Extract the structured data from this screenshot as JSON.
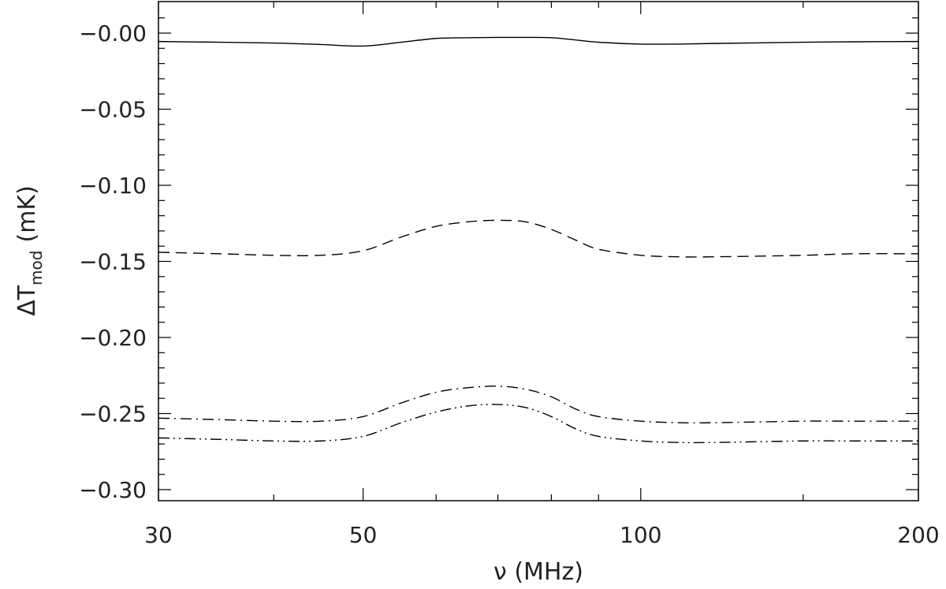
{
  "chart_data": {
    "type": "line",
    "title": "",
    "xlabel": "ν (MHz)",
    "ylabel": "ΔT_mod (mK)",
    "ylabel_main": "ΔT",
    "ylabel_sub": "mod",
    "ylabel_unit": "(mK)",
    "xscale": "log",
    "xlim": [
      30,
      200
    ],
    "ylim": [
      -0.3,
      0.0
    ],
    "x_ticks": [
      30,
      50,
      100,
      200
    ],
    "x_tick_labels": [
      "30",
      "50",
      "100",
      "200"
    ],
    "x_minor_ticks": [
      40,
      60,
      70,
      80,
      90,
      150
    ],
    "y_ticks": [
      0.0,
      -0.05,
      -0.1,
      -0.15,
      -0.2,
      -0.25,
      -0.3
    ],
    "y_tick_labels": [
      "−0.00",
      "−0.05",
      "−0.10",
      "−0.15",
      "−0.20",
      "−0.25",
      "−0.30"
    ],
    "grid": false,
    "series": [
      {
        "linestyle": "solid",
        "x": [
          30,
          35,
          40,
          45,
          50,
          55,
          60,
          65,
          70,
          75,
          80,
          85,
          90,
          100,
          110,
          120,
          150,
          170,
          200
        ],
        "y": [
          -0.0055,
          -0.006,
          -0.0065,
          -0.0075,
          -0.0085,
          -0.006,
          -0.0035,
          -0.003,
          -0.0028,
          -0.0028,
          -0.003,
          -0.0045,
          -0.006,
          -0.0072,
          -0.0072,
          -0.0068,
          -0.006,
          -0.0057,
          -0.0055
        ]
      },
      {
        "linestyle": "dashed",
        "x": [
          30,
          35,
          40,
          45,
          50,
          55,
          60,
          65,
          70,
          75,
          80,
          85,
          90,
          100,
          110,
          120,
          150,
          170,
          200
        ],
        "y": [
          -0.144,
          -0.145,
          -0.146,
          -0.146,
          -0.143,
          -0.134,
          -0.127,
          -0.124,
          -0.123,
          -0.124,
          -0.129,
          -0.136,
          -0.142,
          -0.146,
          -0.147,
          -0.147,
          -0.146,
          -0.145,
          -0.145
        ]
      },
      {
        "linestyle": "dash-dot",
        "x": [
          30,
          35,
          40,
          45,
          50,
          55,
          60,
          65,
          70,
          75,
          80,
          85,
          90,
          100,
          110,
          120,
          150,
          170,
          200
        ],
        "y": [
          -0.253,
          -0.254,
          -0.255,
          -0.255,
          -0.252,
          -0.243,
          -0.236,
          -0.233,
          -0.232,
          -0.234,
          -0.239,
          -0.247,
          -0.252,
          -0.255,
          -0.256,
          -0.256,
          -0.255,
          -0.255,
          -0.255
        ]
      },
      {
        "linestyle": "dash-dot-dot",
        "x": [
          30,
          35,
          40,
          45,
          50,
          55,
          60,
          65,
          70,
          75,
          80,
          85,
          90,
          100,
          110,
          120,
          150,
          170,
          200
        ],
        "y": [
          -0.266,
          -0.267,
          -0.268,
          -0.268,
          -0.265,
          -0.256,
          -0.249,
          -0.245,
          -0.244,
          -0.246,
          -0.252,
          -0.26,
          -0.265,
          -0.268,
          -0.269,
          -0.269,
          -0.268,
          -0.268,
          -0.268
        ]
      }
    ]
  }
}
